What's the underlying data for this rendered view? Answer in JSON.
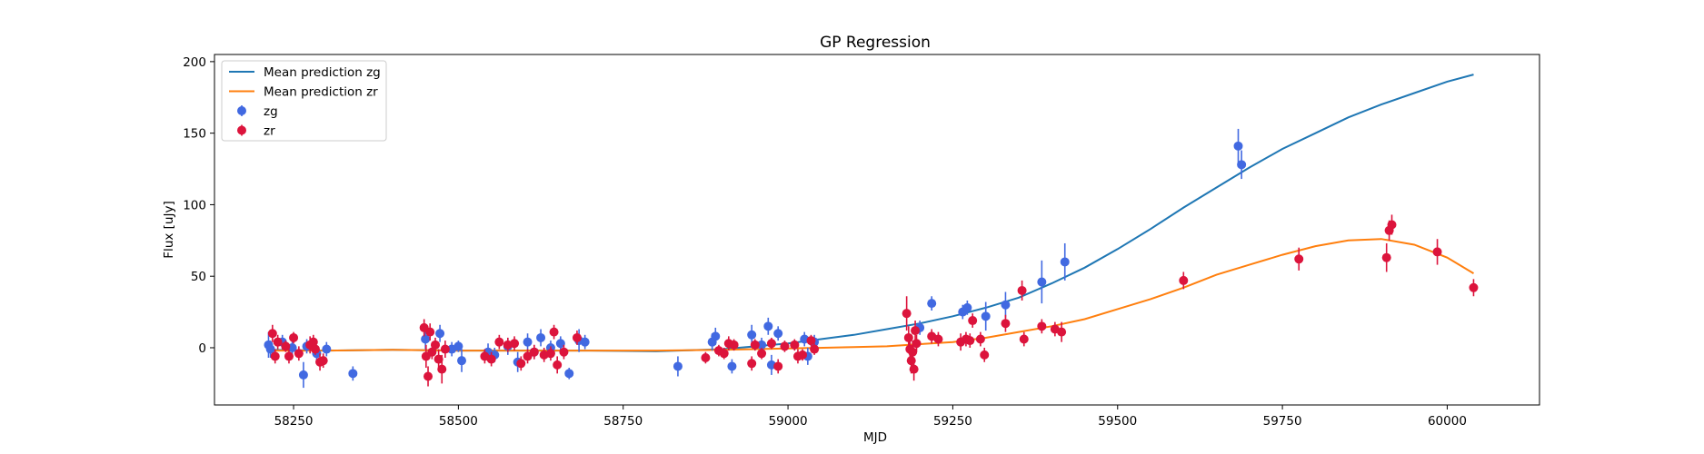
{
  "chart_data": {
    "type": "scatter",
    "title": "GP Regression",
    "xlabel": "MJD",
    "ylabel": "Flux [uJy]",
    "xlim": [
      58130,
      60140
    ],
    "ylim": [
      -40,
      205
    ],
    "xticks": [
      58250,
      58500,
      58750,
      59000,
      59250,
      59500,
      59750,
      60000
    ],
    "yticks": [
      0,
      50,
      100,
      150,
      200
    ],
    "grid": false,
    "legend": "upper-left",
    "colors": {
      "mean_zg": "#1f77b4",
      "mean_zr": "#ff7f0e",
      "zg": "#4169e1",
      "zr": "#dc143c"
    },
    "legend_entries": [
      {
        "label": "Mean prediction zg",
        "kind": "line",
        "color": "#1f77b4"
      },
      {
        "label": "Mean prediction zr",
        "kind": "line",
        "color": "#ff7f0e"
      },
      {
        "label": "zg",
        "kind": "point",
        "color": "#4169e1"
      },
      {
        "label": "zr",
        "kind": "point",
        "color": "#dc143c"
      }
    ],
    "lines": [
      {
        "name": "Mean prediction zg",
        "color": "#1f77b4",
        "x": [
          58210,
          58300,
          58400,
          58500,
          58600,
          58700,
          58800,
          58900,
          59000,
          59050,
          59100,
          59150,
          59200,
          59250,
          59300,
          59350,
          59400,
          59450,
          59500,
          59550,
          59600,
          59650,
          59700,
          59750,
          59800,
          59850,
          59900,
          59950,
          60000,
          60040
        ],
        "y": [
          -1.5,
          -2,
          -1.5,
          -2,
          -2,
          -2,
          -2.5,
          -1,
          3,
          6,
          9,
          13,
          17,
          22,
          28,
          35,
          45,
          56,
          69,
          83,
          98,
          112,
          126,
          139,
          150,
          161,
          170,
          178,
          186,
          191
        ]
      },
      {
        "name": "Mean prediction zr",
        "color": "#ff7f0e",
        "x": [
          58210,
          58300,
          58400,
          58500,
          58600,
          58700,
          58800,
          58900,
          59000,
          59100,
          59150,
          59200,
          59250,
          59300,
          59350,
          59400,
          59450,
          59500,
          59550,
          59600,
          59650,
          59700,
          59750,
          59800,
          59850,
          59900,
          59950,
          60000,
          60040
        ],
        "y": [
          -2,
          -2,
          -1.5,
          -2,
          -2,
          -2,
          -2,
          -1.5,
          -0.5,
          0.5,
          1,
          2.5,
          4,
          7,
          11,
          15,
          20,
          27,
          34,
          42,
          51,
          58,
          65,
          71,
          75,
          76,
          72,
          63,
          52
        ]
      }
    ],
    "series": [
      {
        "name": "zg",
        "color": "#4169e1",
        "points": [
          {
            "x": 58212,
            "y": 2,
            "err": 9
          },
          {
            "x": 58215,
            "y": -1,
            "err": 6
          },
          {
            "x": 58233,
            "y": 4,
            "err": 5
          },
          {
            "x": 58248,
            "y": 0,
            "err": 5
          },
          {
            "x": 58265,
            "y": -19,
            "err": 9
          },
          {
            "x": 58270,
            "y": 1,
            "err": 5
          },
          {
            "x": 58285,
            "y": -4,
            "err": 5
          },
          {
            "x": 58300,
            "y": -1,
            "err": 5
          },
          {
            "x": 58340,
            "y": -18,
            "err": 5
          },
          {
            "x": 58450,
            "y": 6,
            "err": 7
          },
          {
            "x": 58472,
            "y": 10,
            "err": 6
          },
          {
            "x": 58490,
            "y": -1,
            "err": 5
          },
          {
            "x": 58500,
            "y": 1,
            "err": 4
          },
          {
            "x": 58505,
            "y": -9,
            "err": 8
          },
          {
            "x": 58545,
            "y": -3,
            "err": 6
          },
          {
            "x": 58555,
            "y": -5,
            "err": 5
          },
          {
            "x": 58575,
            "y": 1,
            "err": 6
          },
          {
            "x": 58590,
            "y": -10,
            "err": 7
          },
          {
            "x": 58605,
            "y": 4,
            "err": 6
          },
          {
            "x": 58615,
            "y": -3,
            "err": 5
          },
          {
            "x": 58625,
            "y": 7,
            "err": 6
          },
          {
            "x": 58640,
            "y": 0,
            "err": 5
          },
          {
            "x": 58655,
            "y": 3,
            "err": 5
          },
          {
            "x": 58668,
            "y": -18,
            "err": 4
          },
          {
            "x": 58683,
            "y": 5,
            "err": 8
          },
          {
            "x": 58692,
            "y": 4,
            "err": 5
          },
          {
            "x": 58833,
            "y": -13,
            "err": 7
          },
          {
            "x": 58885,
            "y": 4,
            "err": 6
          },
          {
            "x": 58890,
            "y": 8,
            "err": 6
          },
          {
            "x": 58915,
            "y": -13,
            "err": 5
          },
          {
            "x": 58945,
            "y": 9,
            "err": 7
          },
          {
            "x": 58960,
            "y": 2,
            "err": 5
          },
          {
            "x": 58970,
            "y": 15,
            "err": 6
          },
          {
            "x": 58985,
            "y": 10,
            "err": 5
          },
          {
            "x": 58975,
            "y": -12,
            "err": 7
          },
          {
            "x": 59025,
            "y": 6,
            "err": 5
          },
          {
            "x": 59030,
            "y": -6,
            "err": 6
          },
          {
            "x": 59040,
            "y": 4,
            "err": 5
          },
          {
            "x": 59200,
            "y": 14,
            "err": 5
          },
          {
            "x": 59218,
            "y": 31,
            "err": 5
          },
          {
            "x": 59265,
            "y": 25,
            "err": 5
          },
          {
            "x": 59272,
            "y": 28,
            "err": 5
          },
          {
            "x": 59300,
            "y": 22,
            "err": 10
          },
          {
            "x": 59330,
            "y": 30,
            "err": 9
          },
          {
            "x": 59385,
            "y": 46,
            "err": 15
          },
          {
            "x": 59420,
            "y": 60,
            "err": 13
          },
          {
            "x": 59683,
            "y": 141,
            "err": 12
          },
          {
            "x": 59688,
            "y": 128,
            "err": 10
          }
        ]
      },
      {
        "name": "zr",
        "color": "#dc143c",
        "points": [
          {
            "x": 58218,
            "y": 10,
            "err": 6
          },
          {
            "x": 58222,
            "y": -6,
            "err": 5
          },
          {
            "x": 58226,
            "y": 4,
            "err": 5
          },
          {
            "x": 58238,
            "y": 1,
            "err": 4
          },
          {
            "x": 58243,
            "y": -6,
            "err": 5
          },
          {
            "x": 58250,
            "y": 7,
            "err": 4
          },
          {
            "x": 58258,
            "y": -4,
            "err": 5
          },
          {
            "x": 58275,
            "y": 2,
            "err": 6
          },
          {
            "x": 58280,
            "y": 4,
            "err": 5
          },
          {
            "x": 58283,
            "y": -1,
            "err": 4
          },
          {
            "x": 58290,
            "y": -10,
            "err": 6
          },
          {
            "x": 58295,
            "y": -9,
            "err": 5
          },
          {
            "x": 58448,
            "y": 14,
            "err": 6
          },
          {
            "x": 58451,
            "y": -6,
            "err": 8
          },
          {
            "x": 58454,
            "y": -20,
            "err": 7
          },
          {
            "x": 58457,
            "y": 11,
            "err": 6
          },
          {
            "x": 58460,
            "y": -3,
            "err": 5
          },
          {
            "x": 58465,
            "y": 2,
            "err": 5
          },
          {
            "x": 58470,
            "y": -8,
            "err": 7
          },
          {
            "x": 58475,
            "y": -15,
            "err": 10
          },
          {
            "x": 58480,
            "y": -1,
            "err": 6
          },
          {
            "x": 58540,
            "y": -6,
            "err": 5
          },
          {
            "x": 58550,
            "y": -8,
            "err": 5
          },
          {
            "x": 58562,
            "y": 4,
            "err": 5
          },
          {
            "x": 58575,
            "y": 2,
            "err": 5
          },
          {
            "x": 58585,
            "y": 3,
            "err": 5
          },
          {
            "x": 58595,
            "y": -11,
            "err": 5
          },
          {
            "x": 58605,
            "y": -6,
            "err": 5
          },
          {
            "x": 58615,
            "y": -3,
            "err": 5
          },
          {
            "x": 58630,
            "y": -5,
            "err": 5
          },
          {
            "x": 58640,
            "y": -4,
            "err": 5
          },
          {
            "x": 58645,
            "y": 11,
            "err": 5
          },
          {
            "x": 58650,
            "y": -12,
            "err": 6
          },
          {
            "x": 58660,
            "y": -3,
            "err": 5
          },
          {
            "x": 58680,
            "y": 7,
            "err": 5
          },
          {
            "x": 58875,
            "y": -7,
            "err": 4
          },
          {
            "x": 58895,
            "y": -2,
            "err": 4
          },
          {
            "x": 58903,
            "y": -4,
            "err": 4
          },
          {
            "x": 58910,
            "y": 3,
            "err": 5
          },
          {
            "x": 58918,
            "y": 2,
            "err": 4
          },
          {
            "x": 58945,
            "y": -11,
            "err": 5
          },
          {
            "x": 58950,
            "y": 2,
            "err": 4
          },
          {
            "x": 58960,
            "y": -4,
            "err": 4
          },
          {
            "x": 58975,
            "y": 3,
            "err": 4
          },
          {
            "x": 58985,
            "y": -13,
            "err": 5
          },
          {
            "x": 58995,
            "y": 1,
            "err": 4
          },
          {
            "x": 59010,
            "y": 2,
            "err": 4
          },
          {
            "x": 59015,
            "y": -6,
            "err": 5
          },
          {
            "x": 59022,
            "y": -5,
            "err": 4
          },
          {
            "x": 59035,
            "y": 5,
            "err": 4
          },
          {
            "x": 59040,
            "y": -1,
            "err": 4
          },
          {
            "x": 59180,
            "y": 24,
            "err": 12
          },
          {
            "x": 59183,
            "y": 7,
            "err": 8
          },
          {
            "x": 59185,
            "y": -1,
            "err": 10
          },
          {
            "x": 59187,
            "y": -9,
            "err": 9
          },
          {
            "x": 59189,
            "y": -3,
            "err": 8
          },
          {
            "x": 59191,
            "y": -15,
            "err": 8
          },
          {
            "x": 59193,
            "y": 12,
            "err": 7
          },
          {
            "x": 59195,
            "y": 3,
            "err": 6
          },
          {
            "x": 59218,
            "y": 8,
            "err": 5
          },
          {
            "x": 59228,
            "y": 6,
            "err": 5
          },
          {
            "x": 59262,
            "y": 4,
            "err": 6
          },
          {
            "x": 59270,
            "y": 6,
            "err": 5
          },
          {
            "x": 59276,
            "y": 5,
            "err": 5
          },
          {
            "x": 59280,
            "y": 19,
            "err": 5
          },
          {
            "x": 59292,
            "y": 6,
            "err": 5
          },
          {
            "x": 59298,
            "y": -5,
            "err": 5
          },
          {
            "x": 59330,
            "y": 17,
            "err": 6
          },
          {
            "x": 59355,
            "y": 40,
            "err": 7
          },
          {
            "x": 59358,
            "y": 6,
            "err": 5
          },
          {
            "x": 59385,
            "y": 15,
            "err": 5
          },
          {
            "x": 59405,
            "y": 13,
            "err": 5
          },
          {
            "x": 59415,
            "y": 11,
            "err": 7
          },
          {
            "x": 59600,
            "y": 47,
            "err": 6
          },
          {
            "x": 59775,
            "y": 62,
            "err": 8
          },
          {
            "x": 59908,
            "y": 63,
            "err": 10
          },
          {
            "x": 59912,
            "y": 82,
            "err": 7
          },
          {
            "x": 59916,
            "y": 86,
            "err": 7
          },
          {
            "x": 59985,
            "y": 67,
            "err": 9
          },
          {
            "x": 60040,
            "y": 42,
            "err": 6
          }
        ]
      }
    ]
  }
}
